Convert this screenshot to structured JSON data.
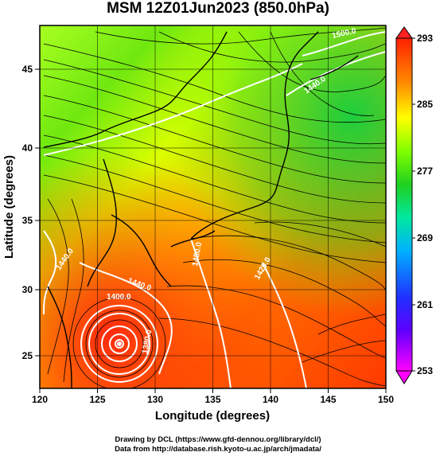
{
  "title": "MSM 12Z01Jun2023 (850.0hPa)",
  "axes": {
    "x_label": "Longitude (degrees)",
    "y_label": "Latitude  (degrees)",
    "x_ticks": [
      "120",
      "125",
      "130",
      "135",
      "140",
      "145",
      "150"
    ],
    "y_ticks": [
      "45",
      "40",
      "35",
      "30",
      "25"
    ]
  },
  "colorbar": {
    "ticks": [
      "293",
      "285",
      "277",
      "269",
      "261",
      "253"
    ],
    "stops": [
      "#ff00ff",
      "#3030ff",
      "#00b0ff",
      "#00ff80",
      "#20d020",
      "#80ff00",
      "#ffff00",
      "#ff8000",
      "#ff2000"
    ]
  },
  "contour_labels": [
    "1500.0",
    "1440.0",
    "1440.0",
    "1480.0",
    "1440.0",
    "1420.0",
    "1400.0",
    "1380.0"
  ],
  "credits": {
    "drawing": "Drawing by DCL (https://www.gfd-dennou.org/library/dcl/)",
    "data": "Data from http://database.rish.kyoto-u.ac.jp/arch/jmadata/"
  },
  "chart_data": {
    "type": "heatmap",
    "title": "MSM 12Z01Jun2023 (850.0hPa)",
    "xlabel": "Longitude (degrees)",
    "ylabel": "Latitude  (degrees)",
    "xlim": [
      120,
      150
    ],
    "ylim": [
      22.5,
      47.5
    ],
    "colorbar_range": [
      253,
      293
    ],
    "colorbar_ticks": [
      293,
      285,
      277,
      269,
      261,
      253
    ],
    "overlays": [
      "streamlines",
      "geopotential height contours (white)",
      "coastlines"
    ],
    "contour_values": [
      1380,
      1400,
      1420,
      1440,
      1480,
      1500
    ],
    "cyclone_center": {
      "lon": 127,
      "lat": 26
    }
  }
}
